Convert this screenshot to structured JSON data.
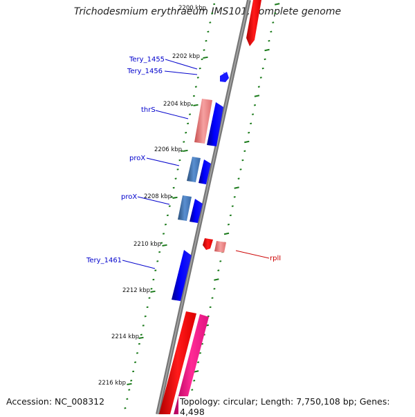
{
  "map": {
    "title": "Trichodesmium erythraeum IMS101, complete genome",
    "accession": "Accession: NC_008312",
    "summary": "Topology: circular; Length: 7,750,108 bp; Genes: 4,498",
    "kbp_labels": [
      "2200 kbp",
      "2202 kbp",
      "2204 kbp",
      "2206 kbp",
      "2208 kbp",
      "2210 kbp",
      "2212 kbp",
      "2214 kbp",
      "2216 kbp"
    ],
    "gene_labels": [
      "Tery_1455",
      "Tery_1456",
      "thrS",
      "proX",
      "proX",
      "Tery_1461",
      "rplI"
    ],
    "colors": {
      "forward_cds": "#0000ee",
      "forward_cds_light": "#4a7fc1",
      "reverse_cds": "#ee0000",
      "reverse_cds_light": "#f08080",
      "magenta_feature": "#ee1080",
      "backbone": "#777777",
      "tick": "#1a7a1a"
    }
  }
}
